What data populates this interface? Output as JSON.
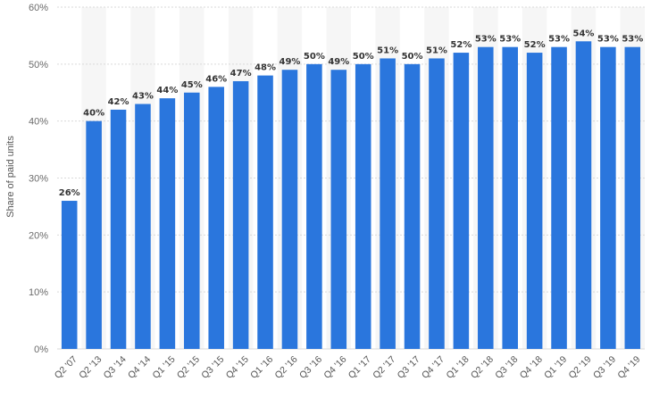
{
  "chart_data": {
    "type": "bar",
    "title": "",
    "xlabel": "",
    "ylabel": "Share of paid units",
    "ylim": [
      0,
      60
    ],
    "yticks": [
      "0%",
      "10%",
      "20%",
      "30%",
      "40%",
      "50%",
      "60%"
    ],
    "categories": [
      "Q2 '07",
      "Q2 '13",
      "Q3 '14",
      "Q4 '14",
      "Q1 '15",
      "Q2 '15",
      "Q3 '15",
      "Q4 '15",
      "Q1 '16",
      "Q2 '16",
      "Q3 '16",
      "Q4 '16",
      "Q1 '17",
      "Q2 '17",
      "Q3 '17",
      "Q4 '17",
      "Q1 '18",
      "Q2 '18",
      "Q3 '18",
      "Q4 '18",
      "Q1 '19",
      "Q2 '19",
      "Q3 '19",
      "Q4 '19"
    ],
    "values": [
      26,
      40,
      42,
      43,
      44,
      45,
      46,
      47,
      48,
      49,
      50,
      49,
      50,
      51,
      50,
      51,
      52,
      53,
      53,
      52,
      53,
      54,
      53,
      53
    ],
    "value_labels": [
      "26%",
      "40%",
      "42%",
      "43%",
      "44%",
      "45%",
      "46%",
      "47%",
      "48%",
      "49%",
      "50%",
      "49%",
      "50%",
      "51%",
      "50%",
      "51%",
      "52%",
      "53%",
      "53%",
      "52%",
      "53%",
      "54%",
      "53%",
      "53%"
    ],
    "grid": true,
    "legend": "none",
    "colors": {
      "bar": "#2a76dd",
      "band": "#f6f6f6",
      "grid": "#d9d9d9"
    }
  }
}
